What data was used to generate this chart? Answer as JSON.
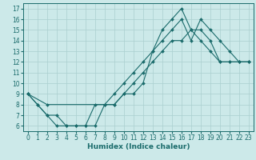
{
  "title": "",
  "xlabel": "Humidex (Indice chaleur)",
  "xlim": [
    -0.5,
    23.5
  ],
  "ylim": [
    5.5,
    17.5
  ],
  "xticks": [
    0,
    1,
    2,
    3,
    4,
    5,
    6,
    7,
    8,
    9,
    10,
    11,
    12,
    13,
    14,
    15,
    16,
    17,
    18,
    19,
    20,
    21,
    22,
    23
  ],
  "yticks": [
    6,
    7,
    8,
    9,
    10,
    11,
    12,
    13,
    14,
    15,
    16,
    17
  ],
  "bg_color": "#cce9e9",
  "line_color": "#1a6b6b",
  "grid_color": "#aacfcf",
  "lines": [
    {
      "x": [
        0,
        1,
        2,
        3,
        4,
        5,
        6,
        7,
        8,
        9,
        10,
        11,
        12,
        13,
        14,
        15,
        16,
        17,
        18,
        19,
        20,
        21,
        22,
        23
      ],
      "y": [
        9,
        8,
        7,
        6,
        6,
        6,
        6,
        6,
        8,
        8,
        9,
        10,
        11,
        12,
        13,
        14,
        14,
        15,
        15,
        14,
        12,
        12,
        12,
        12
      ]
    },
    {
      "x": [
        0,
        1,
        2,
        3,
        4,
        5,
        6,
        7,
        8,
        9,
        10,
        11,
        12,
        13,
        14,
        15,
        16,
        17,
        18,
        19,
        20,
        21,
        22,
        23
      ],
      "y": [
        9,
        8,
        7,
        7,
        6,
        6,
        6,
        8,
        8,
        9,
        10,
        11,
        12,
        13,
        15,
        16,
        17,
        15,
        14,
        13,
        12,
        12,
        12,
        12
      ]
    },
    {
      "x": [
        0,
        2,
        9,
        10,
        11,
        12,
        13,
        14,
        15,
        16,
        17,
        18,
        19,
        20,
        21,
        22,
        23
      ],
      "y": [
        9,
        8,
        8,
        9,
        9,
        10,
        13,
        14,
        15,
        16,
        14,
        16,
        15,
        14,
        13,
        12,
        12
      ]
    }
  ],
  "xlabel_fontsize": 6.5,
  "tick_fontsize": 5.5
}
